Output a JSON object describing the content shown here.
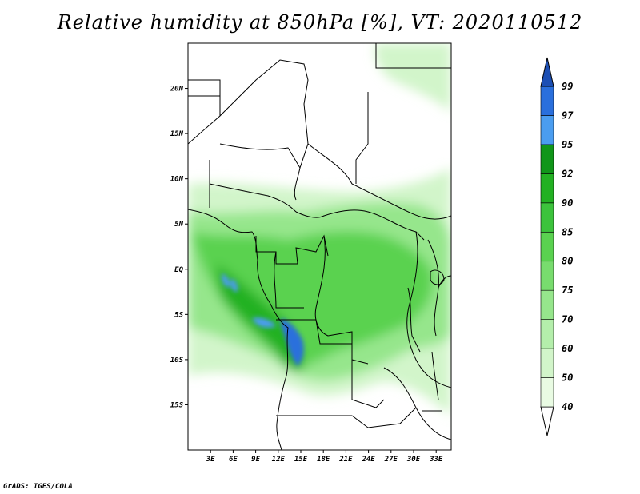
{
  "title": "Relative humidity at 850hPa [%], VT: 2020110512",
  "credit": "GrADS: IGES/COLA",
  "map": {
    "lon_range": [
      0,
      35
    ],
    "lat_range": [
      -20,
      25
    ],
    "lat_ticks": [
      {
        "lat": 20,
        "label": "20N"
      },
      {
        "lat": 15,
        "label": "15N"
      },
      {
        "lat": 10,
        "label": "10N"
      },
      {
        "lat": 5,
        "label": "5N"
      },
      {
        "lat": 0,
        "label": "EQ"
      },
      {
        "lat": -5,
        "label": "5S"
      },
      {
        "lat": -10,
        "label": "10S"
      },
      {
        "lat": -15,
        "label": "15S"
      }
    ],
    "lon_ticks": [
      {
        "lon": 3,
        "label": "3E"
      },
      {
        "lon": 6,
        "label": "6E"
      },
      {
        "lon": 9,
        "label": "9E"
      },
      {
        "lon": 12,
        "label": "12E"
      },
      {
        "lon": 15,
        "label": "15E"
      },
      {
        "lon": 18,
        "label": "18E"
      },
      {
        "lon": 21,
        "label": "21E"
      },
      {
        "lon": 24,
        "label": "24E"
      },
      {
        "lon": 27,
        "label": "27E"
      },
      {
        "lon": 30,
        "label": "30E"
      },
      {
        "lon": 33,
        "label": "33E"
      }
    ]
  },
  "colorbar": {
    "levels": [
      "40",
      "50",
      "60",
      "70",
      "75",
      "80",
      "85",
      "90",
      "92",
      "95",
      "97",
      "99"
    ],
    "colors": [
      "#ffffff",
      "#e9fbe3",
      "#d2f5ca",
      "#b4eeab",
      "#96e68c",
      "#78dc6e",
      "#5ad250",
      "#3cc33c",
      "#23b123",
      "#11961a",
      "#4b9df0",
      "#2a6fdc",
      "#1c4fb4"
    ]
  }
}
